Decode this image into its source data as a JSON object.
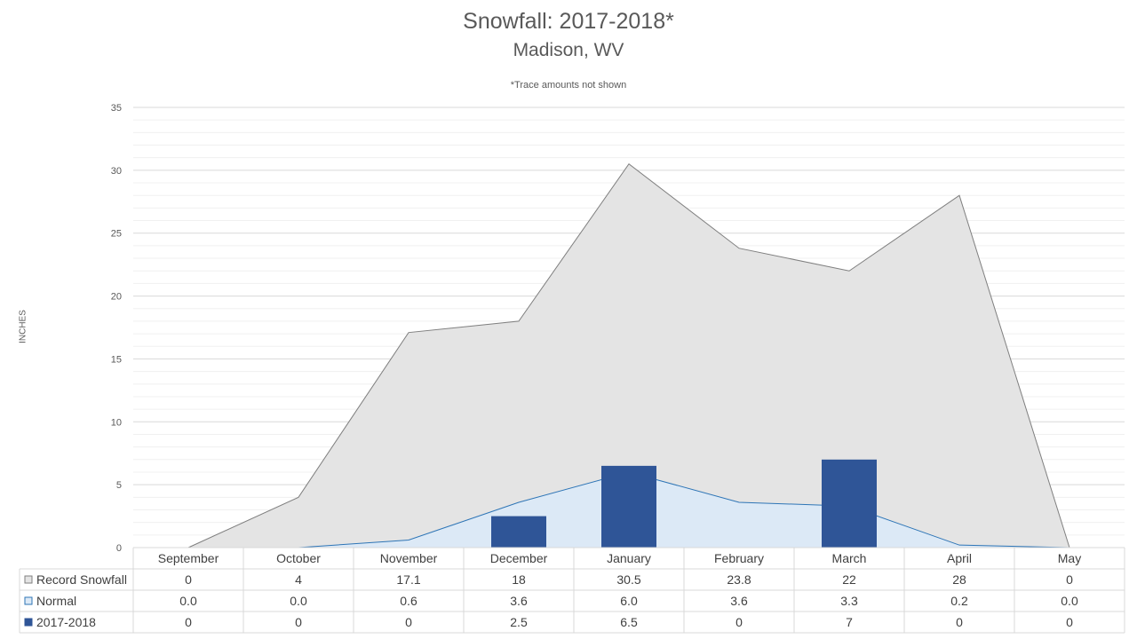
{
  "chart_data": {
    "type": "bar",
    "title": "Snowfall: 2017-2018*",
    "subtitle": "Madison, WV",
    "note": "*Trace amounts not shown",
    "ylabel": "INCHES",
    "ylim": [
      0,
      35
    ],
    "yticks": [
      0,
      5,
      10,
      15,
      20,
      25,
      30,
      35
    ],
    "categories": [
      "September",
      "October",
      "November",
      "December",
      "January",
      "February",
      "March",
      "April",
      "May"
    ],
    "series": [
      {
        "name": "Record Snowfall",
        "type": "area",
        "color": "#e4e4e4",
        "stroke": "#7f7f7f",
        "values": [
          0,
          4,
          17.1,
          18,
          30.5,
          23.8,
          22,
          28,
          0
        ],
        "labels": [
          "0",
          "4",
          "17.1",
          "18",
          "30.5",
          "23.8",
          "22",
          "28",
          "0"
        ]
      },
      {
        "name": "Normal",
        "type": "area",
        "color": "#dce9f6",
        "stroke": "#2e75b6",
        "values": [
          0.0,
          0.0,
          0.6,
          3.6,
          6.0,
          3.6,
          3.3,
          0.2,
          0.0
        ],
        "labels": [
          "0.0",
          "0.0",
          "0.6",
          "3.6",
          "6.0",
          "3.6",
          "3.3",
          "0.2",
          "0.0"
        ]
      },
      {
        "name": "2017-2018",
        "type": "bar",
        "color": "#2f5597",
        "values": [
          0,
          0,
          0,
          2.5,
          6.5,
          0,
          7,
          0,
          0
        ],
        "labels": [
          "0",
          "0",
          "0",
          "2.5",
          "6.5",
          "0",
          "7",
          "0",
          "0"
        ]
      }
    ],
    "grid": true,
    "legend": "data-table"
  }
}
